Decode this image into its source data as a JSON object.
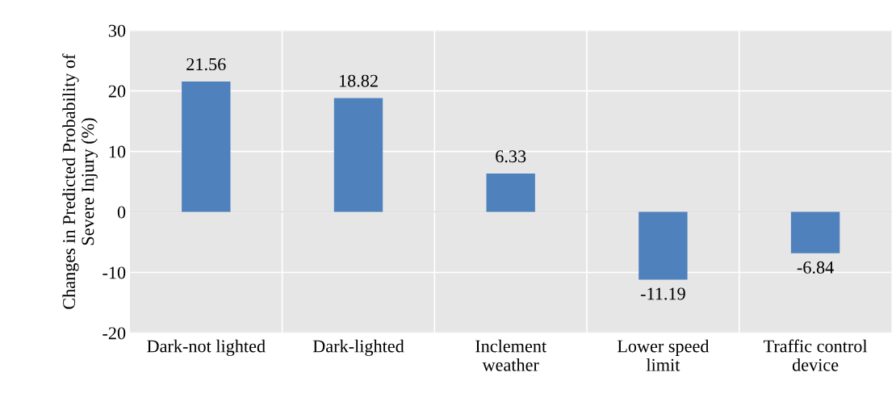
{
  "chart_data": {
    "type": "bar",
    "categories": [
      "Dark-not lighted",
      "Dark-lighted",
      "Inclement\nweather",
      "Lower speed\nlimit",
      "Traffic control\ndevice"
    ],
    "values": [
      21.56,
      18.82,
      6.33,
      -11.19,
      -6.84
    ],
    "color": "#4f81bd",
    "ylabel": "Changes in Predicted Probability of\nSevere Injury (%)",
    "ylim": [
      -20,
      30
    ],
    "yticks": [
      -20,
      -10,
      0,
      10,
      20,
      30
    ],
    "grid": true,
    "data_labels": true
  }
}
